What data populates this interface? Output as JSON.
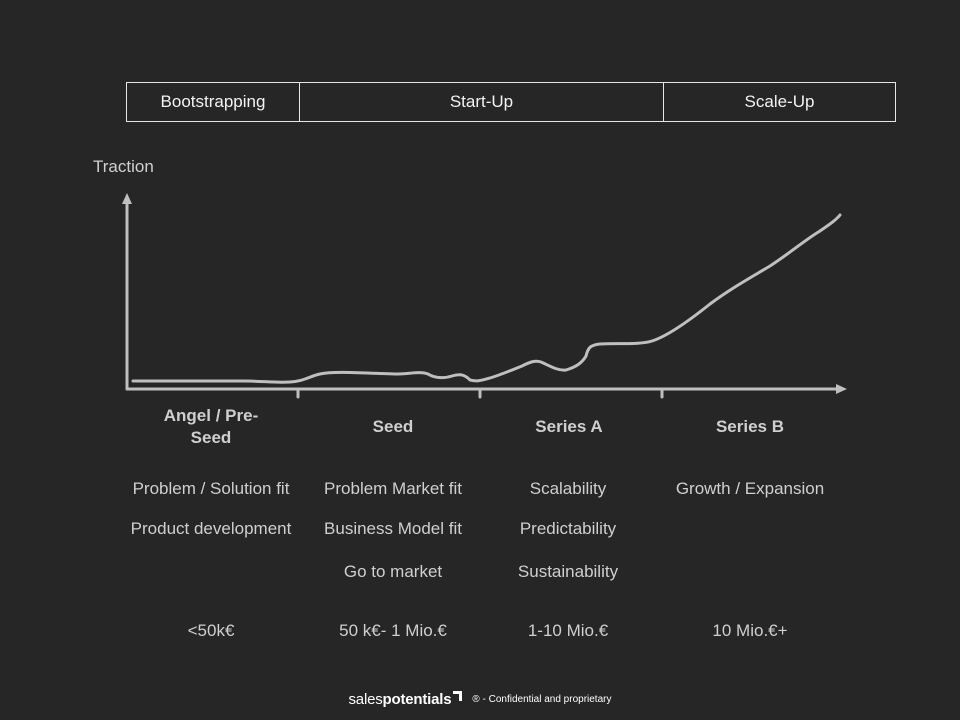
{
  "phases": [
    {
      "label": "Bootstrapping"
    },
    {
      "label": "Start-Up"
    },
    {
      "label": "Scale-Up"
    }
  ],
  "axis": {
    "y_label": "Traction"
  },
  "stages": [
    {
      "name": "Angel / Pre-Seed",
      "goals": [
        "Problem / Solution fit",
        "Product development"
      ],
      "funding": "<50k€"
    },
    {
      "name": "Seed",
      "goals": [
        "Problem Market fit",
        "Business Model fit",
        "Go to market"
      ],
      "funding": "50 k€- 1 Mio.€"
    },
    {
      "name": "Series A",
      "goals": [
        "Scalability",
        "Predictability",
        "Sustainability"
      ],
      "funding": "1-10 Mio.€"
    },
    {
      "name": "Series B",
      "goals": [
        "Growth / Expansion"
      ],
      "funding": "10 Mio.€+"
    }
  ],
  "footer": {
    "logo_part1": "sales",
    "logo_part2": "potentials",
    "copyright": "® - Confidential and proprietary"
  },
  "colors": {
    "background": "#262626",
    "line": "#bfbfbf",
    "text": "#cfcfcf"
  }
}
